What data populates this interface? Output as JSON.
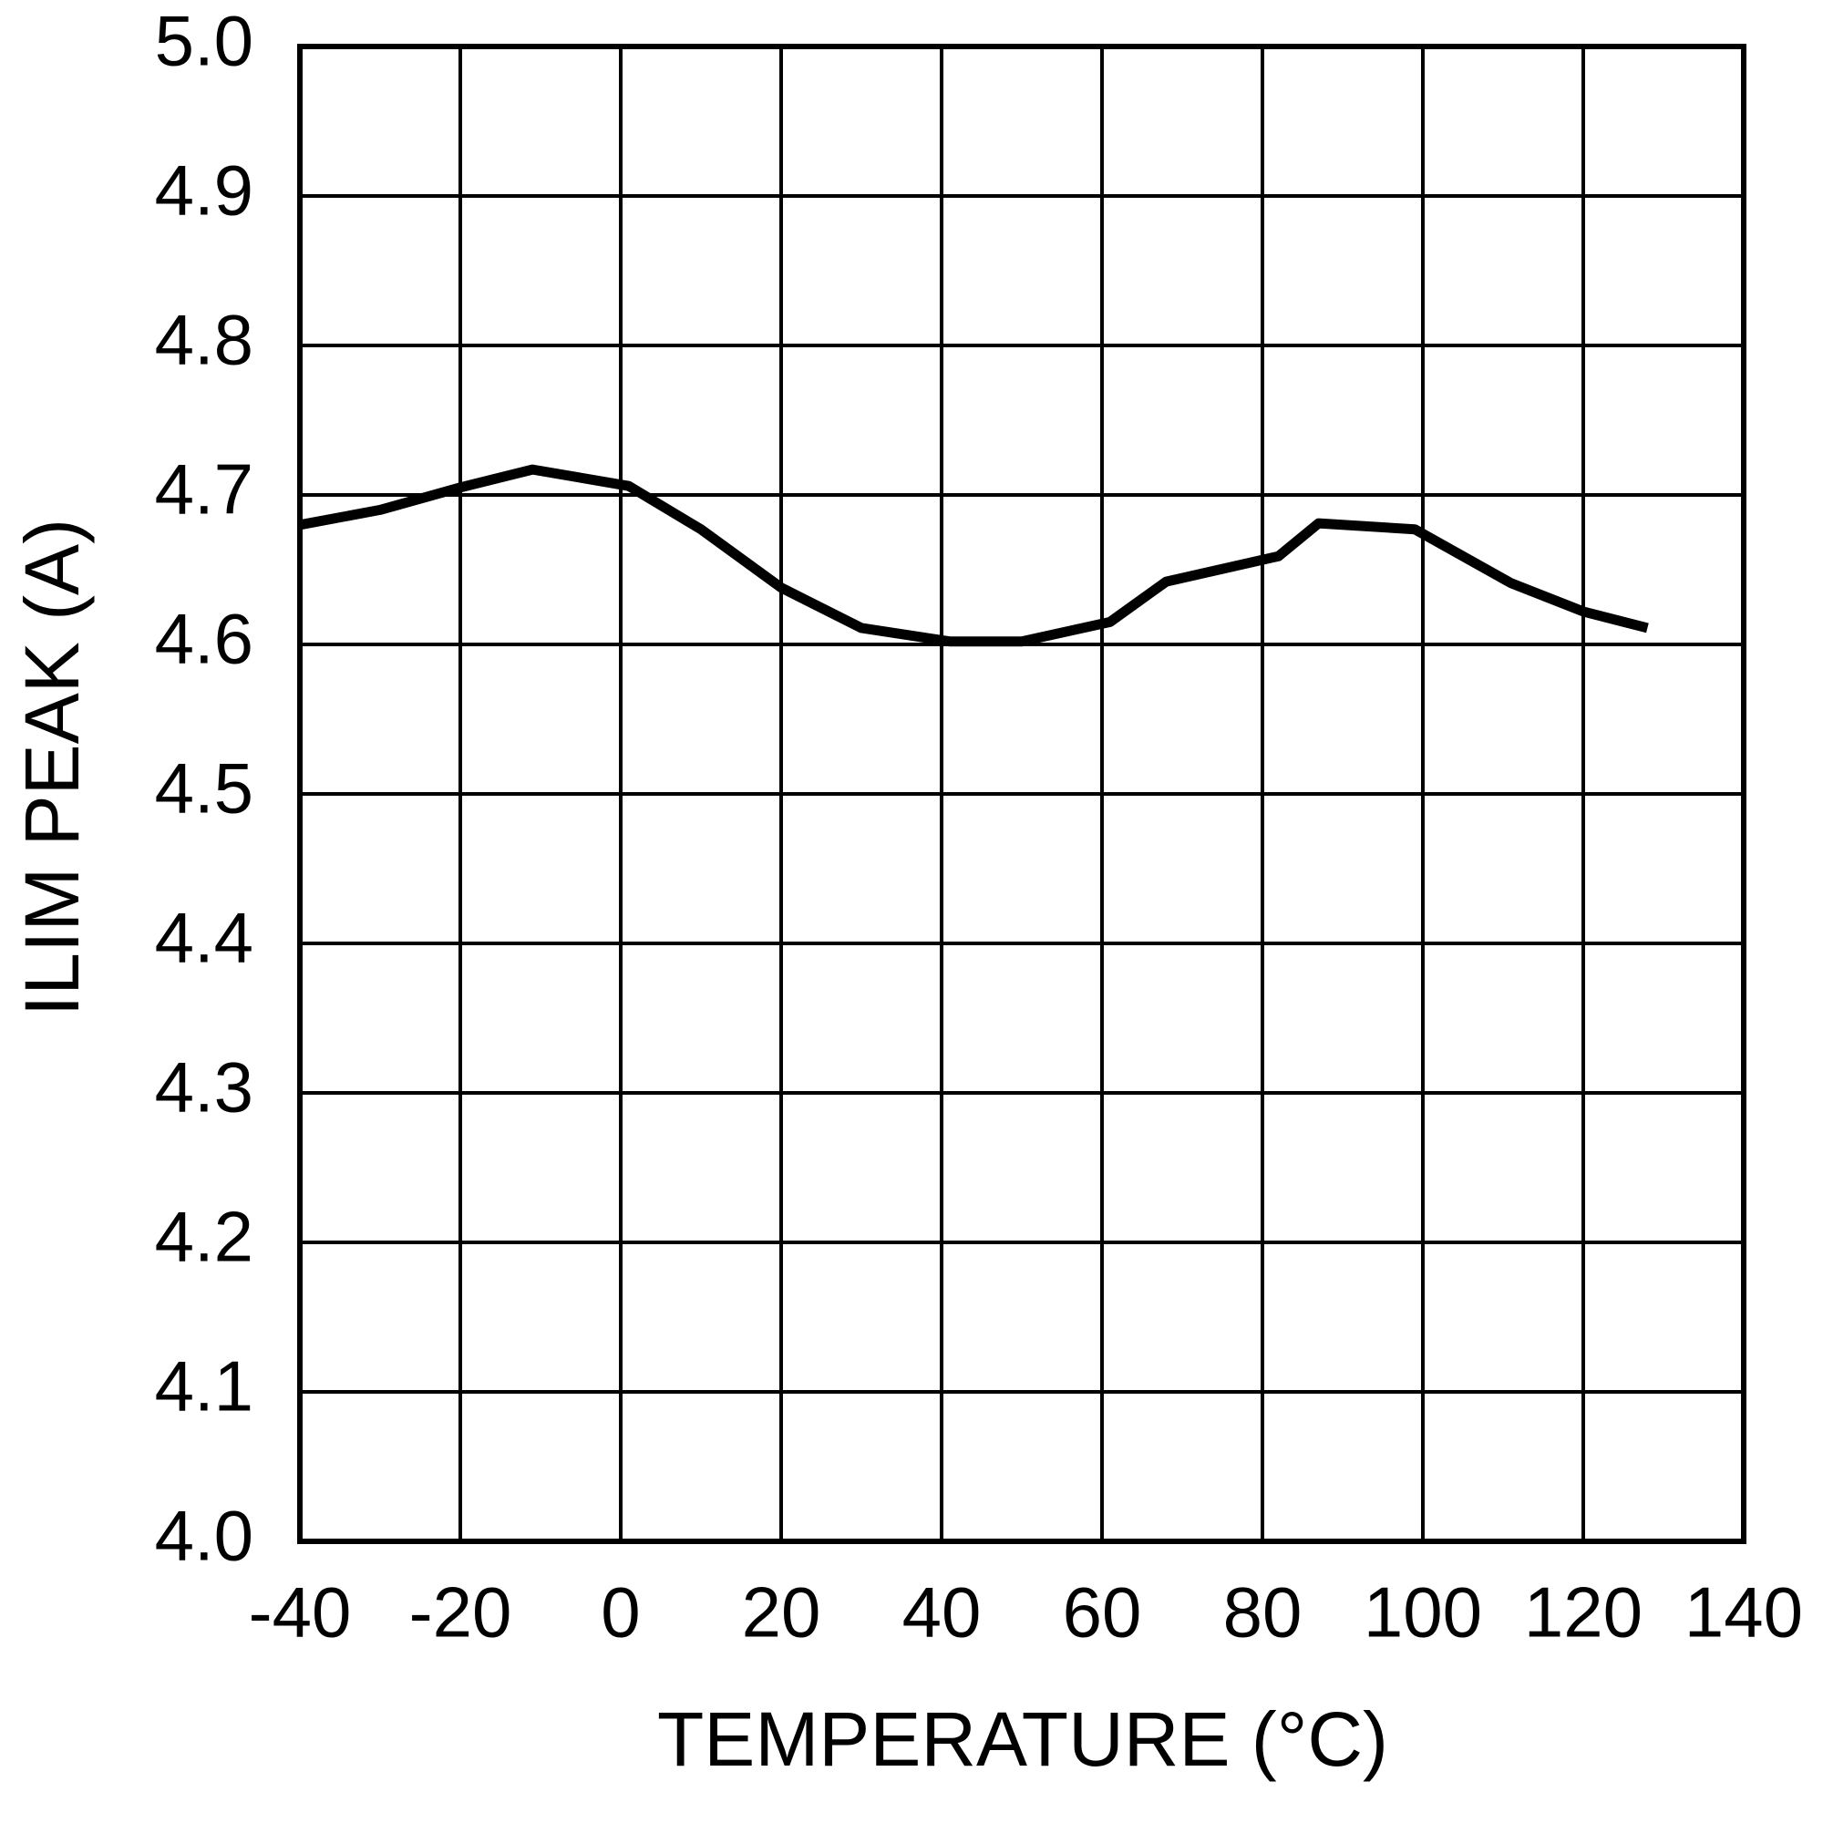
{
  "chart_data": {
    "type": "line",
    "x_label": "TEMPERATURE (°C)",
    "y_label": "ILIM PEAK (A)",
    "x": [
      -40,
      -30,
      -20,
      -11,
      1,
      10,
      20,
      30,
      41,
      50,
      61,
      68,
      82,
      87,
      99,
      111,
      120,
      128
    ],
    "series": [
      {
        "color": "#000000",
        "values": [
          4.68,
          4.69,
          4.705,
          4.717,
          4.706,
          4.677,
          4.638,
          4.611,
          4.602,
          4.602,
          4.615,
          4.642,
          4.659,
          4.681,
          4.677,
          4.641,
          4.622,
          4.611
        ]
      }
    ],
    "xlim": [
      -40,
      140
    ],
    "xticks": [
      -40,
      -20,
      0,
      20,
      40,
      60,
      80,
      100,
      120,
      140
    ],
    "ylim": [
      4.0,
      5.0
    ],
    "yticks": [
      {
        "value": 4.0,
        "label": "4.0"
      },
      4.1,
      4.2,
      4.3,
      4.4,
      4.5,
      4.6,
      4.7,
      4.8,
      4.9,
      {
        "value": 5.0,
        "label": "5.0"
      }
    ],
    "grid": true
  }
}
